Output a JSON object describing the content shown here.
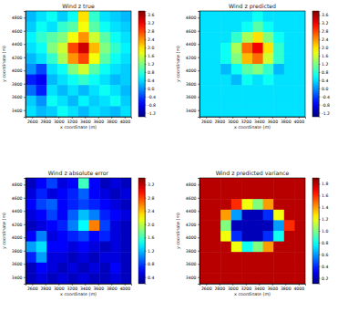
{
  "chart_data": [
    {
      "type": "heatmap",
      "title": "Wind z true",
      "x_label": "x coordinate (m)",
      "y_label": "y coordinate (m)",
      "xlim": [
        2500,
        4100
      ],
      "ylim": [
        3300,
        4900
      ],
      "xticks": [
        2600,
        2800,
        3000,
        3200,
        3400,
        3600,
        3800,
        4000
      ],
      "yticks": [
        3400,
        3600,
        3800,
        4000,
        4200,
        4400,
        4600,
        4800
      ],
      "x": [
        2580,
        2740,
        2900,
        3060,
        3220,
        3380,
        3540,
        3700,
        3860,
        4020
      ],
      "y": [
        4820,
        4660,
        4500,
        4340,
        4180,
        4020,
        3860,
        3700,
        3540,
        3380
      ],
      "cells": [
        [
          0.2,
          0.4,
          0.6,
          0.3,
          0.6,
          2.0,
          0.8,
          0.4,
          0.3,
          0.2
        ],
        [
          0.3,
          0.6,
          0.4,
          0.8,
          1.0,
          1.8,
          1.0,
          0.6,
          0.4,
          0.3
        ],
        [
          0.5,
          0.8,
          1.0,
          1.2,
          1.8,
          2.4,
          1.6,
          1.0,
          0.6,
          0.4
        ],
        [
          0.4,
          0.6,
          1.2,
          1.6,
          2.8,
          3.4,
          2.2,
          1.2,
          0.8,
          0.5
        ],
        [
          0.2,
          0.4,
          0.8,
          1.4,
          2.4,
          2.8,
          1.8,
          1.0,
          0.6,
          0.4
        ],
        [
          0.0,
          -0.4,
          0.4,
          0.6,
          1.2,
          1.6,
          1.0,
          0.6,
          0.4,
          0.3
        ],
        [
          -0.6,
          -0.8,
          0.2,
          0.4,
          0.6,
          0.8,
          0.6,
          0.4,
          0.2,
          0.3
        ],
        [
          -0.2,
          -0.6,
          0.4,
          0.2,
          0.4,
          0.2,
          0.4,
          0.6,
          0.4,
          0.2
        ],
        [
          0.3,
          0.0,
          0.6,
          0.4,
          0.2,
          0.5,
          0.3,
          0.4,
          0.6,
          0.3
        ],
        [
          0.4,
          0.2,
          0.3,
          0.6,
          0.4,
          0.2,
          0.4,
          0.3,
          0.2,
          0.4
        ]
      ],
      "colorbar_range": [
        -1.4,
        3.8
      ],
      "colorbar_ticks": [
        -1.2,
        -0.8,
        -0.4,
        {
          "value": 0,
          "label": "0.0"
        },
        0.4,
        0.8,
        1.2,
        1.6,
        {
          "value": 2,
          "label": "2.0"
        },
        2.4,
        2.8,
        3.2,
        3.6
      ]
    },
    {
      "type": "heatmap",
      "title": "Wind z predicted",
      "x_label": "x coordinate (m)",
      "y_label": "y coordinate (m)",
      "xlim": [
        2500,
        4100
      ],
      "ylim": [
        3300,
        4900
      ],
      "xticks": [
        2600,
        2800,
        3000,
        3200,
        3400,
        3600,
        3800,
        4000
      ],
      "yticks": [
        3400,
        3600,
        3800,
        4000,
        4200,
        4400,
        4600,
        4800
      ],
      "x": [
        2580,
        2740,
        2900,
        3060,
        3220,
        3380,
        3540,
        3700,
        3860,
        4020
      ],
      "y": [
        4820,
        4660,
        4500,
        4340,
        4180,
        4020,
        3860,
        3700,
        3540,
        3380
      ],
      "cells": [
        [
          0.4,
          0.4,
          0.4,
          0.4,
          0.4,
          0.6,
          0.4,
          0.4,
          0.4,
          0.4
        ],
        [
          0.4,
          0.4,
          0.4,
          0.4,
          0.6,
          1.0,
          0.6,
          0.4,
          0.4,
          0.4
        ],
        [
          0.4,
          0.4,
          0.4,
          0.8,
          1.4,
          2.0,
          1.2,
          0.6,
          0.4,
          0.4
        ],
        [
          0.4,
          0.4,
          0.6,
          1.4,
          2.6,
          3.2,
          2.0,
          0.8,
          0.4,
          0.4
        ],
        [
          0.4,
          0.4,
          0.6,
          1.2,
          2.2,
          2.6,
          1.6,
          0.8,
          0.4,
          0.4
        ],
        [
          0.4,
          0.4,
          0.2,
          0.6,
          1.0,
          1.2,
          0.8,
          0.2,
          0.4,
          0.4
        ],
        [
          0.4,
          0.4,
          0.4,
          0.2,
          0.6,
          0.4,
          0.6,
          0.4,
          0.4,
          0.4
        ],
        [
          0.4,
          0.4,
          0.4,
          0.4,
          0.4,
          0.4,
          0.4,
          0.4,
          0.4,
          0.4
        ],
        [
          0.4,
          0.4,
          0.4,
          0.4,
          0.4,
          0.4,
          0.4,
          0.4,
          0.4,
          0.4
        ],
        [
          0.4,
          0.4,
          0.4,
          0.4,
          0.4,
          0.4,
          0.4,
          0.4,
          0.4,
          0.4
        ]
      ],
      "colorbar_range": [
        -1.4,
        3.8
      ],
      "colorbar_ticks": [
        -1.2,
        -0.8,
        -0.4,
        {
          "value": 0,
          "label": "0.0"
        },
        0.4,
        0.8,
        1.2,
        1.6,
        {
          "value": 2,
          "label": "2.0"
        },
        2.4,
        2.8,
        3.2,
        3.6
      ]
    },
    {
      "type": "heatmap",
      "title": "Wind z absolute error",
      "x_label": "x coordinate (m)",
      "y_label": "y coordinate (m)",
      "xlim": [
        2500,
        4100
      ],
      "ylim": [
        3300,
        4900
      ],
      "xticks": [
        2600,
        2800,
        3000,
        3200,
        3400,
        3600,
        3800,
        4000
      ],
      "yticks": [
        3400,
        3600,
        3800,
        4000,
        4200,
        4400,
        4600,
        4800
      ],
      "x": [
        2580,
        2740,
        2900,
        3060,
        3220,
        3380,
        3540,
        3700,
        3860,
        4020
      ],
      "y": [
        4820,
        4660,
        4500,
        4340,
        4180,
        4020,
        3860,
        3700,
        3540,
        3380
      ],
      "cells": [
        [
          0.4,
          0.6,
          0.8,
          0.5,
          0.6,
          1.6,
          0.6,
          0.4,
          0.5,
          0.4
        ],
        [
          0.5,
          0.7,
          0.5,
          0.6,
          0.7,
          0.9,
          0.6,
          0.5,
          0.4,
          0.5
        ],
        [
          0.6,
          0.8,
          0.9,
          0.6,
          0.7,
          0.8,
          0.7,
          0.6,
          0.5,
          0.4
        ],
        [
          0.5,
          0.6,
          0.8,
          0.6,
          0.9,
          1.2,
          1.0,
          0.7,
          0.6,
          0.5
        ],
        [
          0.4,
          0.5,
          0.6,
          0.7,
          1.0,
          1.4,
          2.6,
          0.8,
          0.5,
          0.4
        ],
        [
          0.6,
          1.0,
          0.5,
          0.6,
          0.7,
          0.8,
          0.6,
          0.7,
          0.5,
          0.4
        ],
        [
          1.1,
          1.3,
          0.6,
          0.6,
          0.5,
          0.6,
          0.5,
          0.4,
          0.5,
          0.4
        ],
        [
          0.7,
          1.1,
          0.5,
          0.5,
          0.4,
          0.5,
          0.4,
          0.5,
          0.5,
          0.4
        ],
        [
          0.4,
          0.6,
          0.5,
          0.4,
          0.5,
          0.4,
          0.5,
          0.4,
          0.6,
          0.4
        ],
        [
          0.4,
          0.5,
          0.4,
          0.5,
          0.4,
          0.5,
          0.4,
          0.4,
          0.5,
          0.4
        ]
      ],
      "colorbar_range": [
        0.2,
        3.4
      ],
      "colorbar_ticks": [
        0.4,
        0.8,
        1.2,
        1.6,
        {
          "value": 2,
          "label": "2.0"
        },
        2.4,
        2.8,
        3.2
      ]
    },
    {
      "type": "heatmap",
      "title": "Wind z predicted variance",
      "x_label": "x coordinate (m)",
      "y_label": "y coordinate (m)",
      "xlim": [
        2500,
        4100
      ],
      "ylim": [
        3300,
        4900
      ],
      "xticks": [
        2600,
        2800,
        3000,
        3200,
        3400,
        3600,
        3800,
        4000
      ],
      "yticks": [
        3400,
        3600,
        3800,
        4000,
        4200,
        4400,
        4600,
        4800
      ],
      "x": [
        2580,
        2740,
        2900,
        3060,
        3220,
        3380,
        3540,
        3700,
        3860,
        4020
      ],
      "y": [
        4820,
        4660,
        4500,
        4340,
        4180,
        4020,
        3860,
        3700,
        3540,
        3380
      ],
      "cells": [
        [
          1.8,
          1.8,
          1.8,
          1.8,
          1.8,
          1.8,
          1.8,
          1.8,
          1.8,
          1.8
        ],
        [
          1.8,
          1.8,
          1.8,
          1.8,
          1.8,
          1.8,
          1.8,
          1.8,
          1.8,
          1.8
        ],
        [
          1.8,
          1.8,
          1.8,
          1.6,
          1.2,
          1.0,
          1.4,
          1.8,
          1.8,
          1.8
        ],
        [
          1.8,
          1.8,
          1.4,
          0.6,
          0.2,
          0.2,
          0.4,
          1.2,
          1.8,
          1.8
        ],
        [
          1.8,
          1.8,
          1.0,
          0.2,
          0.2,
          0.2,
          0.2,
          0.6,
          1.6,
          1.8
        ],
        [
          1.8,
          1.8,
          1.2,
          0.4,
          0.2,
          0.2,
          0.4,
          0.8,
          1.8,
          1.8
        ],
        [
          1.8,
          1.8,
          1.8,
          1.2,
          0.8,
          1.0,
          1.4,
          1.8,
          1.8,
          1.8
        ],
        [
          1.8,
          1.8,
          1.8,
          1.8,
          1.8,
          1.8,
          1.8,
          1.8,
          1.8,
          1.8
        ],
        [
          1.8,
          1.8,
          1.8,
          1.8,
          1.8,
          1.8,
          1.8,
          1.8,
          1.8,
          1.8
        ],
        [
          1.8,
          1.8,
          1.8,
          1.8,
          1.8,
          1.8,
          1.8,
          1.8,
          1.8,
          1.8
        ]
      ],
      "colorbar_range": [
        0.1,
        1.9
      ],
      "colorbar_ticks": [
        0.2,
        0.4,
        0.6,
        0.8,
        {
          "value": 1,
          "label": "1.0"
        },
        1.2,
        1.4,
        1.6,
        1.8
      ]
    }
  ]
}
